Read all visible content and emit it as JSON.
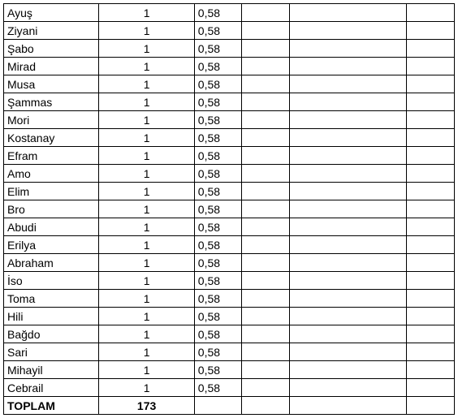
{
  "table": {
    "rows": [
      {
        "name": "Ayuş",
        "count": "1",
        "pct": "0,58"
      },
      {
        "name": "Ziyani",
        "count": "1",
        "pct": "0,58"
      },
      {
        "name": "Şabo",
        "count": "1",
        "pct": "0,58"
      },
      {
        "name": "Mirad",
        "count": "1",
        "pct": "0,58"
      },
      {
        "name": "Musa",
        "count": "1",
        "pct": "0,58"
      },
      {
        "name": "Şammas",
        "count": "1",
        "pct": "0,58"
      },
      {
        "name": "Mori",
        "count": "1",
        "pct": "0,58"
      },
      {
        "name": "Kostanay",
        "count": "1",
        "pct": "0,58"
      },
      {
        "name": "Efram",
        "count": "1",
        "pct": "0,58"
      },
      {
        "name": "Amo",
        "count": "1",
        "pct": "0,58"
      },
      {
        "name": "Elim",
        "count": "1",
        "pct": "0,58"
      },
      {
        "name": "Bro",
        "count": "1",
        "pct": "0,58"
      },
      {
        "name": "Abudi",
        "count": "1",
        "pct": "0,58"
      },
      {
        "name": "Erilya",
        "count": "1",
        "pct": "0,58"
      },
      {
        "name": "Abraham",
        "count": "1",
        "pct": "0,58"
      },
      {
        "name": "İso",
        "count": "1",
        "pct": "0,58"
      },
      {
        "name": "Toma",
        "count": "1",
        "pct": "0,58"
      },
      {
        "name": "Hili",
        "count": "1",
        "pct": "0,58"
      },
      {
        "name": "Bağdo",
        "count": "1",
        "pct": "0,58"
      },
      {
        "name": "Sari",
        "count": "1",
        "pct": "0,58"
      },
      {
        "name": "Mihayil",
        "count": "1",
        "pct": "0,58"
      },
      {
        "name": "Cebrail",
        "count": "1",
        "pct": "0,58"
      }
    ],
    "total": {
      "label": "TOPLAM",
      "count": "173"
    }
  }
}
